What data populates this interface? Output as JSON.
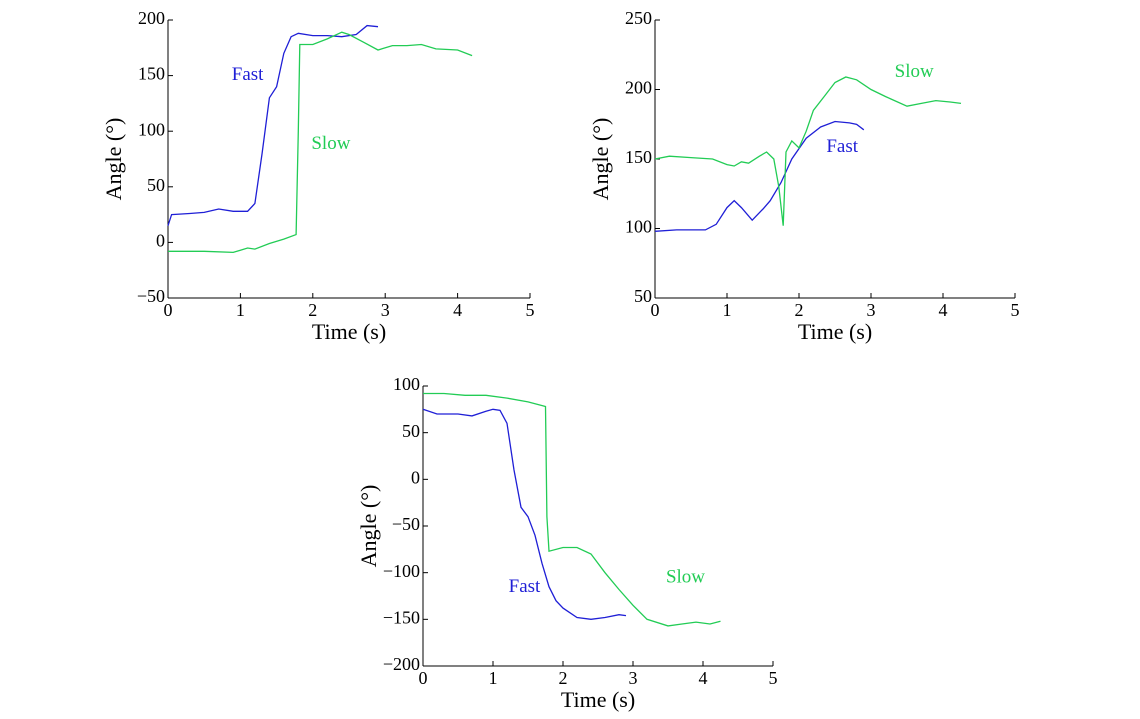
{
  "chart_data": [
    {
      "type": "line",
      "xlabel": "Time (s)",
      "ylabel": "Angle (°)",
      "xlim": [
        0,
        5
      ],
      "ylim": [
        -50,
        200
      ],
      "xticks": [
        0,
        1,
        2,
        3,
        4,
        5
      ],
      "yticks": [
        {
          "value": -50,
          "label": "−50"
        },
        0,
        50,
        100,
        150,
        200
      ],
      "series": [
        {
          "name": "Fast",
          "color": "#1f1fd6",
          "x": [
            0,
            0.05,
            0.3,
            0.5,
            0.7,
            0.9,
            1.1,
            1.2,
            1.3,
            1.4,
            1.5,
            1.6,
            1.7,
            1.8,
            2.0,
            2.2,
            2.4,
            2.6,
            2.75,
            2.9
          ],
          "values": [
            15,
            25,
            26,
            27,
            30,
            28,
            28,
            35,
            80,
            130,
            140,
            170,
            185,
            188,
            186,
            186,
            185,
            187,
            195,
            194
          ]
        },
        {
          "name": "Slow",
          "color": "#22cc55",
          "x": [
            0,
            0.5,
            0.9,
            1.0,
            1.1,
            1.2,
            1.4,
            1.6,
            1.77,
            1.8,
            1.82,
            2.0,
            2.2,
            2.4,
            2.5,
            2.7,
            2.9,
            3.1,
            3.3,
            3.5,
            3.7,
            4.0,
            4.2
          ],
          "values": [
            -8,
            -8,
            -9,
            -7,
            -5,
            -6,
            -1,
            3,
            7,
            100,
            178,
            178,
            183,
            189,
            187,
            180,
            173,
            177,
            177,
            178,
            174,
            173,
            168
          ]
        }
      ]
    },
    {
      "type": "line",
      "xlabel": "Time (s)",
      "ylabel": "Angle (°)",
      "xlim": [
        0,
        5
      ],
      "ylim": [
        50,
        250
      ],
      "xticks": [
        0,
        1,
        2,
        3,
        4,
        5
      ],
      "yticks": [
        50,
        100,
        150,
        200,
        250
      ],
      "series": [
        {
          "name": "Fast",
          "color": "#1f1fd6",
          "x": [
            0,
            0.3,
            0.7,
            0.85,
            1.0,
            1.1,
            1.2,
            1.35,
            1.5,
            1.6,
            1.75,
            1.9,
            2.1,
            2.3,
            2.5,
            2.7,
            2.8,
            2.9
          ],
          "values": [
            98,
            99,
            99,
            103,
            115,
            120,
            115,
            106,
            114,
            120,
            133,
            150,
            165,
            173,
            177,
            176,
            175,
            171
          ]
        },
        {
          "name": "Slow",
          "color": "#22cc55",
          "x": [
            0,
            0.2,
            0.5,
            0.8,
            1.0,
            1.1,
            1.2,
            1.3,
            1.45,
            1.55,
            1.65,
            1.72,
            1.78,
            1.82,
            1.9,
            2.0,
            2.1,
            2.2,
            2.35,
            2.5,
            2.65,
            2.8,
            3.0,
            3.2,
            3.5,
            3.7,
            3.9,
            4.1,
            4.25
          ],
          "values": [
            150,
            152,
            151,
            150,
            146,
            145,
            148,
            147,
            152,
            155,
            150,
            130,
            102,
            155,
            163,
            158,
            170,
            185,
            195,
            205,
            209,
            207,
            200,
            195,
            188,
            190,
            192,
            191,
            190
          ]
        }
      ]
    },
    {
      "type": "line",
      "xlabel": "Time (s)",
      "ylabel": "Angle (°)",
      "xlim": [
        0,
        5
      ],
      "ylim": [
        -200,
        100
      ],
      "xticks": [
        0,
        1,
        2,
        3,
        4,
        5
      ],
      "yticks": [
        {
          "value": -200,
          "label": "−200"
        },
        {
          "value": -150,
          "label": "−150"
        },
        {
          "value": -100,
          "label": "−100"
        },
        {
          "value": -50,
          "label": "−50"
        },
        0,
        50,
        100
      ],
      "series": [
        {
          "name": "Fast",
          "color": "#1f1fd6",
          "x": [
            0,
            0.2,
            0.5,
            0.7,
            0.9,
            1.0,
            1.1,
            1.2,
            1.3,
            1.4,
            1.5,
            1.6,
            1.7,
            1.8,
            1.9,
            2.0,
            2.2,
            2.4,
            2.6,
            2.8,
            2.9
          ],
          "values": [
            75,
            70,
            70,
            68,
            73,
            75,
            74,
            60,
            10,
            -30,
            -40,
            -60,
            -90,
            -115,
            -130,
            -138,
            -148,
            -150,
            -148,
            -145,
            -146
          ]
        },
        {
          "name": "Slow",
          "color": "#22cc55",
          "x": [
            0,
            0.3,
            0.6,
            0.9,
            1.2,
            1.5,
            1.75,
            1.77,
            1.8,
            2.0,
            2.2,
            2.4,
            2.6,
            2.8,
            3.0,
            3.2,
            3.5,
            3.7,
            3.9,
            4.1,
            4.25
          ],
          "values": [
            92,
            92,
            90,
            90,
            87,
            83,
            78,
            -40,
            -77,
            -73,
            -73,
            -80,
            -100,
            -118,
            -135,
            -150,
            -157,
            -155,
            -153,
            -155,
            -152
          ]
        }
      ]
    }
  ]
}
